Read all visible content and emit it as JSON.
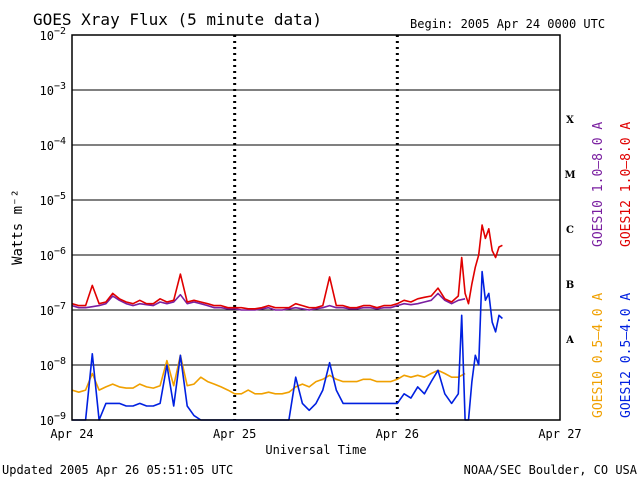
{
  "header": {
    "title": "GOES Xray Flux (5 minute data)",
    "begin": "Begin:  2005 Apr 24 0000 UTC"
  },
  "footer": {
    "updated": "Updated 2005 Apr 26 05:51:05 UTC",
    "credit": "NOAA/SEC Boulder, CO USA"
  },
  "colors": {
    "goes10_long": "#7a1fa0",
    "goes12_long": "#e00000",
    "goes10_short": "#f0a000",
    "goes12_short": "#0020e0"
  },
  "chart_data": {
    "type": "line",
    "title": "GOES Xray Flux (5 minute data)",
    "xlabel": "Universal Time",
    "ylabel": "Watts m⁻²",
    "yscale": "log",
    "ylim": [
      1e-09,
      0.01
    ],
    "xlim": [
      "2005-04-24 00:00",
      "2005-04-27 00:00"
    ],
    "x_ticks": [
      "Apr 24",
      "Apr 25",
      "Apr 26",
      "Apr 27"
    ],
    "y_ticks": [
      {
        "value": 0.01,
        "base": "10",
        "exp": "−2"
      },
      {
        "value": 0.001,
        "base": "10",
        "exp": "−3"
      },
      {
        "value": 0.0001,
        "base": "10",
        "exp": "−4"
      },
      {
        "value": 1e-05,
        "base": "10",
        "exp": "−5"
      },
      {
        "value": 1e-06,
        "base": "10",
        "exp": "−6"
      },
      {
        "value": 1e-07,
        "base": "10",
        "exp": "−7"
      },
      {
        "value": 1e-08,
        "base": "10",
        "exp": "−8"
      },
      {
        "value": 1e-09,
        "base": "10",
        "exp": "−9"
      }
    ],
    "flare_classes": [
      {
        "label": "X",
        "value": 0.0003
      },
      {
        "label": "M",
        "value": 3e-05
      },
      {
        "label": "C",
        "value": 3e-06
      },
      {
        "label": "B",
        "value": 3e-07
      },
      {
        "label": "A",
        "value": 3e-08
      }
    ],
    "grid": true,
    "legend": [
      {
        "name": "GOES10 1.0–8.0 A",
        "color": "#7a1fa0"
      },
      {
        "name": "GOES12 1.0–8.0 A",
        "color": "#e00000"
      },
      {
        "name": "GOES10 0.5–4.0 A",
        "color": "#f0a000"
      },
      {
        "name": "GOES12 0.5–4.0 A",
        "color": "#0020e0"
      }
    ],
    "series": [
      {
        "name": "GOES10 1.0–8.0 A",
        "color": "#7a1fa0",
        "x_hours": [
          0,
          1,
          2,
          3,
          4,
          5,
          6,
          7,
          8,
          9,
          10,
          11,
          12,
          13,
          14,
          15,
          16,
          17,
          18,
          19,
          20,
          21,
          22,
          23,
          24,
          25,
          26,
          27,
          28,
          29,
          30,
          31,
          32,
          33,
          34,
          35,
          36,
          37,
          38,
          39,
          40,
          41,
          42,
          43,
          44,
          45,
          46,
          47,
          48,
          49,
          50,
          51,
          52,
          53,
          54,
          55,
          56,
          57,
          58
        ],
        "values": [
          1.2e-07,
          1.1e-07,
          1.1e-07,
          1.15e-07,
          1.2e-07,
          1.3e-07,
          1.8e-07,
          1.5e-07,
          1.3e-07,
          1.2e-07,
          1.3e-07,
          1.25e-07,
          1.2e-07,
          1.4e-07,
          1.3e-07,
          1.4e-07,
          1.9e-07,
          1.3e-07,
          1.4e-07,
          1.3e-07,
          1.2e-07,
          1.1e-07,
          1.1e-07,
          1.05e-07,
          1.05e-07,
          1e-07,
          1e-07,
          1e-07,
          1.05e-07,
          1.1e-07,
          1e-07,
          1e-07,
          1.05e-07,
          1.1e-07,
          1.05e-07,
          1e-07,
          1.05e-07,
          1.1e-07,
          1.2e-07,
          1.1e-07,
          1.1e-07,
          1.05e-07,
          1.05e-07,
          1.1e-07,
          1.1e-07,
          1.05e-07,
          1.1e-07,
          1.1e-07,
          1.2e-07,
          1.3e-07,
          1.25e-07,
          1.3e-07,
          1.4e-07,
          1.5e-07,
          2e-07,
          1.5e-07,
          1.3e-07,
          1.5e-07,
          1.6e-07
        ]
      },
      {
        "name": "GOES12 1.0–8.0 A",
        "color": "#e00000",
        "x_hours": [
          0,
          1,
          2,
          3,
          4,
          5,
          6,
          7,
          8,
          9,
          10,
          11,
          12,
          13,
          14,
          15,
          16,
          17,
          18,
          19,
          20,
          21,
          22,
          23,
          24,
          25,
          26,
          27,
          28,
          29,
          30,
          31,
          32,
          33,
          34,
          35,
          36,
          37,
          38,
          39,
          40,
          41,
          42,
          43,
          44,
          45,
          46,
          47,
          48,
          49,
          50,
          51,
          52,
          53,
          54,
          55,
          56,
          57,
          57.5,
          58,
          58.5,
          59,
          59.5,
          60,
          60.5,
          61,
          61.5,
          62,
          62.5,
          63,
          63.5
        ],
        "values": [
          1.3e-07,
          1.2e-07,
          1.2e-07,
          2.8e-07,
          1.3e-07,
          1.4e-07,
          2e-07,
          1.6e-07,
          1.4e-07,
          1.3e-07,
          1.5e-07,
          1.3e-07,
          1.3e-07,
          1.6e-07,
          1.4e-07,
          1.5e-07,
          4.5e-07,
          1.4e-07,
          1.5e-07,
          1.4e-07,
          1.3e-07,
          1.2e-07,
          1.2e-07,
          1.1e-07,
          1.1e-07,
          1.1e-07,
          1.05e-07,
          1.05e-07,
          1.1e-07,
          1.2e-07,
          1.1e-07,
          1.1e-07,
          1.1e-07,
          1.3e-07,
          1.2e-07,
          1.1e-07,
          1.1e-07,
          1.2e-07,
          4e-07,
          1.2e-07,
          1.2e-07,
          1.1e-07,
          1.1e-07,
          1.2e-07,
          1.2e-07,
          1.1e-07,
          1.2e-07,
          1.2e-07,
          1.3e-07,
          1.5e-07,
          1.4e-07,
          1.6e-07,
          1.7e-07,
          1.8e-07,
          2.5e-07,
          1.6e-07,
          1.4e-07,
          1.8e-07,
          9e-07,
          2e-07,
          1.3e-07,
          3e-07,
          6e-07,
          1e-06,
          3.5e-06,
          2e-06,
          3e-06,
          1.2e-06,
          9e-07,
          1.4e-06,
          1.5e-06
        ]
      },
      {
        "name": "GOES10 0.5–4.0 A",
        "color": "#f0a000",
        "x_hours": [
          0,
          1,
          2,
          3,
          4,
          5,
          6,
          7,
          8,
          9,
          10,
          11,
          12,
          13,
          14,
          15,
          16,
          17,
          18,
          19,
          20,
          21,
          22,
          23,
          24,
          25,
          26,
          27,
          28,
          29,
          30,
          31,
          32,
          33,
          34,
          35,
          36,
          37,
          38,
          39,
          40,
          41,
          42,
          43,
          44,
          45,
          46,
          47,
          48,
          49,
          50,
          51,
          52,
          53,
          54,
          55,
          56,
          57,
          58
        ],
        "values": [
          3.5e-09,
          3.2e-09,
          3.5e-09,
          7e-09,
          3.5e-09,
          4e-09,
          4.5e-09,
          4e-09,
          3.8e-09,
          3.8e-09,
          4.5e-09,
          4e-09,
          3.8e-09,
          4.2e-09,
          1.2e-08,
          4.2e-09,
          1.5e-08,
          4.2e-09,
          4.5e-09,
          6e-09,
          5e-09,
          4.5e-09,
          4e-09,
          3.5e-09,
          3e-09,
          3e-09,
          3.5e-09,
          3e-09,
          3e-09,
          3.2e-09,
          3e-09,
          3e-09,
          3.2e-09,
          4e-09,
          4.5e-09,
          4e-09,
          5e-09,
          5.5e-09,
          6.5e-09,
          5.5e-09,
          5e-09,
          5e-09,
          5e-09,
          5.5e-09,
          5.5e-09,
          5e-09,
          5e-09,
          5e-09,
          5.5e-09,
          6.5e-09,
          6e-09,
          6.5e-09,
          6e-09,
          7e-09,
          8e-09,
          7e-09,
          6e-09,
          6e-09,
          7e-09
        ]
      },
      {
        "name": "GOES12 0.5–4.0 A",
        "color": "#0020e0",
        "x_hours": [
          0,
          1,
          2,
          3,
          4,
          5,
          6,
          7,
          8,
          9,
          10,
          11,
          12,
          13,
          14,
          15,
          16,
          17,
          18,
          19,
          20,
          21,
          22,
          23,
          24,
          25,
          26,
          27,
          28,
          29,
          30,
          31,
          32,
          33,
          34,
          35,
          36,
          37,
          38,
          39,
          40,
          41,
          42,
          43,
          44,
          45,
          46,
          47,
          48,
          49,
          50,
          51,
          52,
          53,
          54,
          55,
          56,
          57,
          57.5,
          58,
          58.5,
          59,
          59.5,
          60,
          60.5,
          61,
          61.5,
          62,
          62.5,
          63,
          63.5
        ],
        "values": [
          1e-09,
          1e-09,
          1e-09,
          1.6e-08,
          1e-09,
          2e-09,
          2e-09,
          2e-09,
          1.8e-09,
          1.8e-09,
          2e-09,
          1.8e-09,
          1.8e-09,
          2e-09,
          1e-08,
          1.8e-09,
          1.5e-08,
          1.8e-09,
          1.2e-09,
          1e-09,
          1e-09,
          1e-09,
          1e-09,
          1e-09,
          1e-09,
          1e-09,
          1e-09,
          1e-09,
          1e-09,
          1e-09,
          1e-09,
          1e-09,
          1e-09,
          6e-09,
          2e-09,
          1.5e-09,
          2e-09,
          3.5e-09,
          1.1e-08,
          3.5e-09,
          2e-09,
          2e-09,
          2e-09,
          2e-09,
          2e-09,
          2e-09,
          2e-09,
          2e-09,
          2e-09,
          3e-09,
          2.5e-09,
          4e-09,
          3e-09,
          5e-09,
          8e-09,
          3e-09,
          2e-09,
          3e-09,
          8e-08,
          1e-09,
          1e-09,
          5e-09,
          1.5e-08,
          1e-08,
          5e-07,
          1.5e-07,
          2e-07,
          6e-08,
          4e-08,
          8e-08,
          7e-08
        ]
      }
    ]
  }
}
